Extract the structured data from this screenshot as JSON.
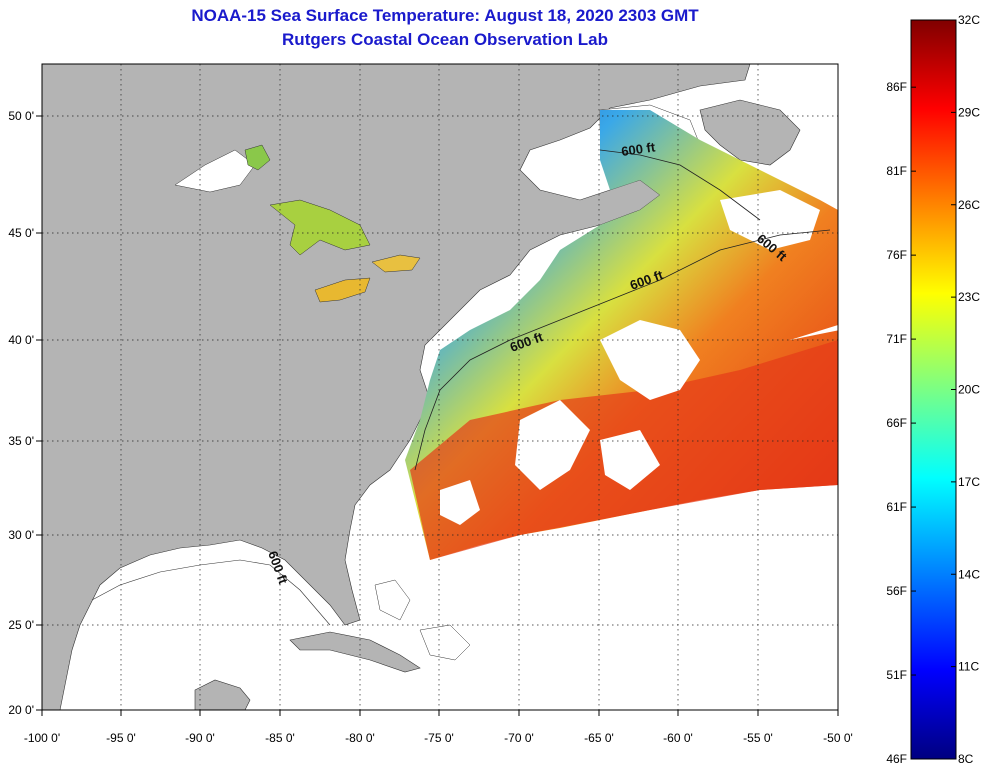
{
  "title": {
    "line1": "NOAA-15 Sea Surface Temperature:  August 18, 2020 2303 GMT",
    "line2": "Rutgers Coastal Ocean Observation Lab"
  },
  "axes": {
    "lat_labels": [
      "50 0'",
      "45 0'",
      "40 0'",
      "35 0'",
      "30 0'",
      "25 0'",
      "20 0'"
    ],
    "lon_labels": [
      "-100 0'",
      "-95 0'",
      "-90 0'",
      "-85 0'",
      "-80 0'",
      "-75 0'",
      "-70 0'",
      "-65 0'",
      "-60 0'",
      "-55 0'",
      "-50 0'"
    ],
    "lat_range": [
      20,
      52.5
    ],
    "lon_range": [
      -100,
      -50
    ]
  },
  "contours": [
    "600 ft",
    "600 ft",
    "600 ft",
    "600 ft",
    "600 ft"
  ],
  "colorbar": {
    "celsius_labels": [
      "32C",
      "29C",
      "26C",
      "23C",
      "20C",
      "17C",
      "14C",
      "11C",
      "8C"
    ],
    "fahrenheit_labels": [
      "86F",
      "81F",
      "76F",
      "71F",
      "66F",
      "61F",
      "56F",
      "51F",
      "46F"
    ],
    "range_c": [
      8,
      32
    ],
    "range_f": [
      46,
      90
    ]
  },
  "colors": {
    "land": "#b4b4b4",
    "title": "#1a1acc",
    "grid": "#222222"
  }
}
